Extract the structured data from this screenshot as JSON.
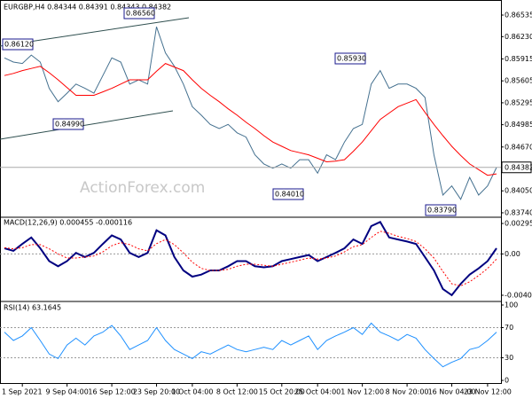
{
  "chart_data": [
    {
      "type": "line",
      "title": "EURGBP,H4 0.84344 0.84391 0.84343 0.84382",
      "watermark": "ActionForex.com",
      "categories": [
        null,
        null,
        "1 Sep 2021",
        null,
        null,
        null,
        null,
        "9 Sep 04:00",
        null,
        null,
        null,
        null,
        "16 Sep 12:00",
        null,
        null,
        null,
        null,
        "23 Sep 20:00",
        null,
        null,
        null,
        "1 Oct 04:00",
        null,
        null,
        null,
        null,
        "8 Oct 12:00",
        null,
        null,
        null,
        null,
        "15 Oct 20:00",
        null,
        null,
        null,
        "25 Oct 04:00",
        null,
        null,
        null,
        null,
        "1 Nov 12:00",
        null,
        null,
        null,
        null,
        "8 Nov 20:00",
        null,
        null,
        null,
        null,
        "16 Nov 04:00",
        null,
        null,
        null,
        "23 Nov 12:00",
        null
      ],
      "series": [
        {
          "color": "#44708f",
          "values": [
            0.8593,
            0.8587,
            0.8585,
            0.8597,
            0.8587,
            0.855,
            0.8531,
            0.8543,
            0.8556,
            0.855,
            0.8543,
            0.8568,
            0.8593,
            0.8587,
            0.8556,
            0.8562,
            0.8556,
            0.8637,
            0.86,
            0.8581,
            0.8556,
            0.8524,
            0.8512,
            0.8499,
            0.8493,
            0.8499,
            0.8487,
            0.8481,
            0.8456,
            0.8443,
            0.8437,
            0.8443,
            0.8437,
            0.8449,
            0.8449,
            0.843,
            0.8456,
            0.8449,
            0.8474,
            0.8493,
            0.8499,
            0.8556,
            0.8575,
            0.855,
            0.8556,
            0.8556,
            0.855,
            0.8537,
            0.8456,
            0.8399,
            0.8412,
            0.8393,
            0.8424,
            0.8399,
            0.8412,
            0.8438
          ]
        },
        {
          "color": "#ff0000",
          "values": [
            0.8568,
            0.8571,
            0.8575,
            0.8578,
            0.8581,
            0.8572,
            0.8562,
            0.8551,
            0.854,
            0.854,
            0.854,
            0.8545,
            0.855,
            0.8556,
            0.8562,
            0.8562,
            0.8562,
            0.8574,
            0.8585,
            0.858,
            0.8575,
            0.8562,
            0.855,
            0.854,
            0.8531,
            0.8521,
            0.8512,
            0.8502,
            0.8493,
            0.8483,
            0.8474,
            0.8468,
            0.8462,
            0.8459,
            0.8456,
            0.8451,
            0.8446,
            0.8447,
            0.8449,
            0.8461,
            0.8474,
            0.849,
            0.8506,
            0.8515,
            0.8524,
            0.8529,
            0.8534,
            0.8516,
            0.8499,
            0.8483,
            0.8468,
            0.8455,
            0.8443,
            0.8435,
            0.8427,
            0.8429
          ]
        }
      ],
      "ylim": [
        0.83677,
        0.86748
      ],
      "yticks": [
        0.86535,
        {
          "value": 0.8623,
          "label": "0.86230"
        },
        0.85915,
        0.85605,
        0.85295,
        0.84985,
        {
          "value": 0.8467,
          "label": "0.84670"
        },
        {
          "value": 0.8405,
          "label": "0.84050"
        },
        {
          "value": 0.8374,
          "label": "0.83740"
        }
      ],
      "current_price": 0.84382,
      "annotations": [
        "0.86120",
        "0.86560",
        "0.84990",
        "0.84010",
        "0.85930",
        "0.83790"
      ]
    },
    {
      "type": "line",
      "title": "MACD(12,26,9) 0.000455 -0.000116",
      "series": [
        {
          "color": "#000080",
          "values": [
            0.00055,
            0.0003,
            0.00097,
            0.0016,
            0.00055,
            -0.0007,
            -0.0012,
            -0.0007,
            0.0001,
            -0.0003,
            0.0001,
            0.00097,
            0.0018,
            0.0014,
            0.0001,
            -0.0003,
            0.0001,
            0.0023,
            0.0018,
            -0.0003,
            -0.0016,
            -0.0022,
            -0.002,
            -0.0016,
            -0.0016,
            -0.0012,
            -0.0007,
            -0.0007,
            -0.0012,
            -0.0013,
            -0.0012,
            -0.0007,
            -0.0005,
            -0.0003,
            -0.0001,
            -0.0007,
            -0.0003,
            0.0001,
            0.00055,
            0.0014,
            0.00097,
            0.0027,
            0.0031,
            0.0016,
            0.0014,
            0.0012,
            0.00097,
            -0.0003,
            -0.0016,
            -0.0034,
            -0.004,
            -0.0029,
            -0.002,
            -0.0014,
            -0.0007,
            0.00055
          ]
        },
        {
          "color": "#ff0000",
          "dash": "dotted",
          "values": [
            0.0006,
            0.0005,
            0.0006,
            0.0009,
            0.0009,
            0.0005,
            0.0,
            -0.0004,
            -0.0004,
            -0.0003,
            -0.0002,
            0.0002,
            0.0008,
            0.0011,
            0.0009,
            0.0005,
            0.0003,
            0.001,
            0.0014,
            0.0009,
            0.0001,
            -0.0008,
            -0.0014,
            -0.0016,
            -0.0016,
            -0.0015,
            -0.0012,
            -0.001,
            -0.001,
            -0.0011,
            -0.0012,
            -0.001,
            -0.0008,
            -0.0006,
            -0.0004,
            -0.0005,
            -0.0004,
            -0.0002,
            0.0002,
            0.0007,
            0.0009,
            0.0016,
            0.0022,
            0.002,
            0.0017,
            0.0015,
            0.0012,
            0.0005,
            -0.0004,
            -0.0017,
            -0.0029,
            -0.0031,
            -0.0027,
            -0.0021,
            -0.0014,
            -0.0005
          ]
        }
      ],
      "ylim": [
        -0.00461,
        0.00356
      ],
      "yticks": [
        0.002955,
        {
          "value": 0,
          "label": "0.00"
        },
        -0.004009
      ]
    },
    {
      "type": "line",
      "title": "RSI(14) 63.1645",
      "series": [
        {
          "color": "#1e90ff",
          "values": [
            64,
            53,
            59,
            70,
            53,
            35,
            29,
            47,
            56,
            47,
            59,
            64,
            73,
            59,
            41,
            47,
            53,
            70,
            53,
            41,
            35,
            29,
            38,
            35,
            41,
            47,
            41,
            38,
            41,
            44,
            41,
            53,
            47,
            53,
            59,
            41,
            53,
            59,
            64,
            70,
            61,
            76,
            64,
            59,
            53,
            61,
            56,
            41,
            29,
            18,
            24,
            29,
            41,
            44,
            53,
            64
          ]
        }
      ],
      "ylim": [
        -3.5,
        104.7
      ],
      "yticks": [
        100,
        70,
        30,
        0
      ]
    }
  ]
}
